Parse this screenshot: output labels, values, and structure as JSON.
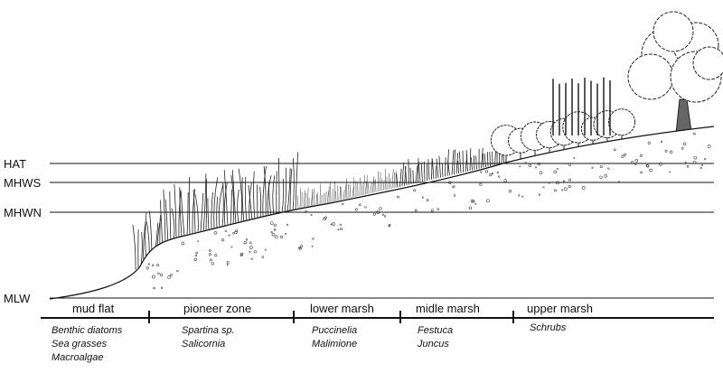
{
  "levels": [
    {
      "label": "HAT"
    },
    {
      "label": "MHWS"
    },
    {
      "label": "MHWN"
    },
    {
      "label": "MLW"
    }
  ],
  "zones": [
    {
      "name": "mud flat",
      "species": [
        "Benthic diatoms",
        "Sea grasses",
        "Macroalgae"
      ]
    },
    {
      "name": "pioneer zone",
      "species": [
        "Spartina sp.",
        "Salicornia"
      ]
    },
    {
      "name": "lower marsh",
      "species": [
        "Puccinelia",
        "Malimione"
      ]
    },
    {
      "name": "midle marsh",
      "species": [
        "Festuca",
        "Juncus"
      ]
    },
    {
      "name": "upper marsh",
      "species": [
        "Schrubs"
      ]
    }
  ]
}
